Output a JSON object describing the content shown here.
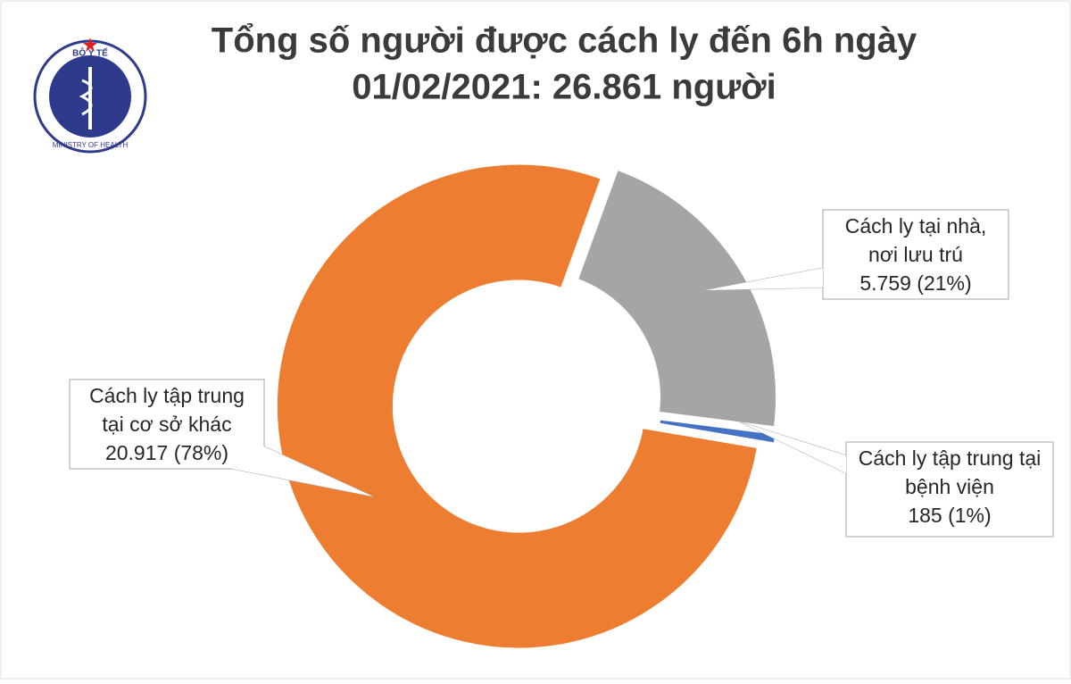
{
  "logo": {
    "top": "BỘ Y TẾ",
    "bottom": "MINISTRY OF HEALTH"
  },
  "chart_data": {
    "type": "donut",
    "title": [
      "Tổng số người được cách ly đến 6h ngày",
      "01/02/2021: 26.861 người"
    ],
    "categories": [
      [
        "Cách ly tại nhà,",
        "nơi lưu trú"
      ],
      [
        "Cách ly tập trung tại",
        "bệnh viện"
      ],
      [
        "Cách ly tập trung",
        "tại cơ sở khác"
      ]
    ],
    "values": [
      5759,
      185,
      20917
    ],
    "value_labels": [
      "5.759 (21%)",
      "185 (1%)",
      "20.917 (78%)"
    ],
    "colors": [
      "#a5a5a5",
      "#4472c4",
      "#ed7d31"
    ]
  }
}
